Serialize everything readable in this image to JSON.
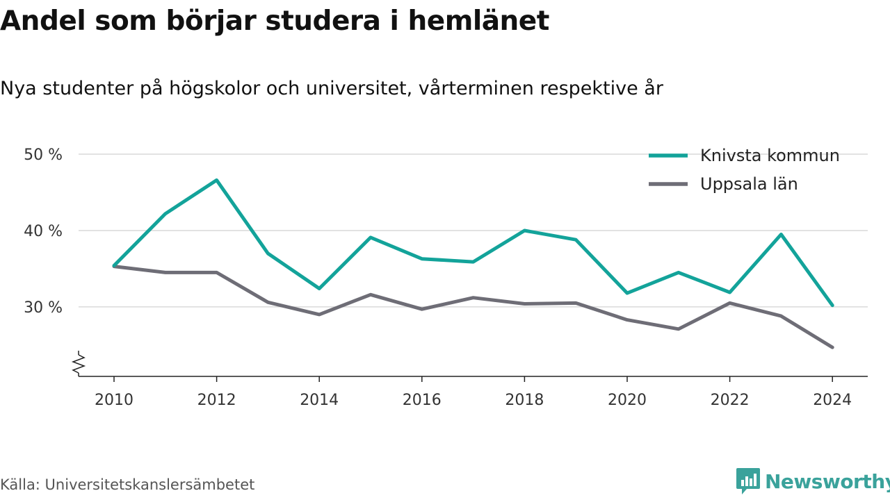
{
  "title": "Andel som börjar studera i hemlänet",
  "subtitle": "Nya studenter på högskolor och universitet, vårterminen respektive år",
  "source": "Källa: Universitetskanslersämbetet",
  "brand": {
    "name": "Newsworthy",
    "color": "#3aa29b",
    "icon": "newsworthy-logo-icon"
  },
  "chart_data": {
    "type": "line",
    "title": "Andel som börjar studera i hemlänet",
    "subtitle": "Nya studenter på högskolor och universitet, vårterminen respektive år",
    "x": [
      2010,
      2011,
      2012,
      2013,
      2014,
      2015,
      2016,
      2017,
      2018,
      2019,
      2020,
      2021,
      2022,
      2023,
      2024
    ],
    "x_ticks": [
      "2010",
      "2012",
      "2014",
      "2016",
      "2018",
      "2020",
      "2022",
      "2024"
    ],
    "y_ticks": [
      "30 %",
      "40 %",
      "50 %"
    ],
    "y_tick_values": [
      30,
      40,
      50
    ],
    "ylim": [
      20.9,
      50
    ],
    "y_axis_break": true,
    "grid": true,
    "legend_position": "top-right",
    "series": [
      {
        "name": "Knivsta kommun",
        "color": "#13a39a",
        "values": [
          35.4,
          42.2,
          46.6,
          37.0,
          32.4,
          39.1,
          36.3,
          35.9,
          40.0,
          38.8,
          31.8,
          34.5,
          31.9,
          39.5,
          30.2
        ]
      },
      {
        "name": "Uppsala län",
        "color": "#6e6d76",
        "values": [
          35.3,
          34.5,
          34.5,
          30.6,
          29.0,
          31.6,
          29.7,
          31.2,
          30.4,
          30.5,
          28.3,
          27.1,
          30.5,
          28.8,
          24.7
        ]
      }
    ]
  }
}
